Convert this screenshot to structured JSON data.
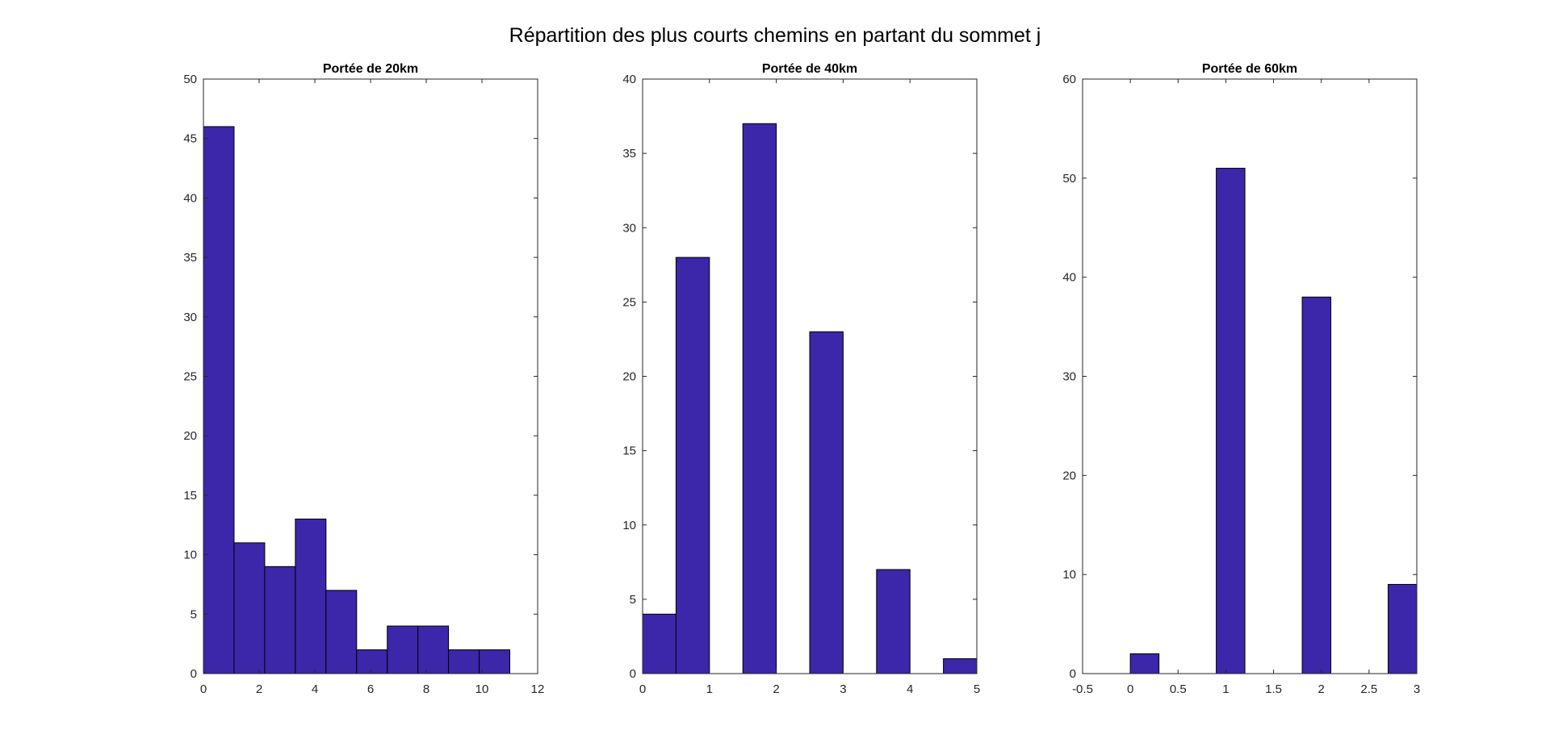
{
  "figure": {
    "title": "Répartition des plus courts chemins en partant du sommet j"
  },
  "colors": {
    "bar_fill": "#3c26a9",
    "bar_edge": "#000000",
    "axis": "#262626"
  },
  "chart_data": [
    {
      "type": "bar",
      "title": "Portée de 20km",
      "xlabel": "",
      "ylabel": "",
      "xlim": [
        0,
        12
      ],
      "ylim": [
        0,
        50
      ],
      "xticks": [
        0,
        2,
        4,
        6,
        8,
        10,
        12
      ],
      "xtick_labels": [
        "0",
        "2",
        "4",
        "6",
        "8",
        "10",
        "12"
      ],
      "yticks": [
        0,
        5,
        10,
        15,
        20,
        25,
        30,
        35,
        40,
        45,
        50
      ],
      "ytick_labels": [
        "0",
        "5",
        "10",
        "15",
        "20",
        "25",
        "30",
        "35",
        "40",
        "45",
        "50"
      ],
      "bins": [
        {
          "x0": 0,
          "x1": 1.1,
          "value": 46
        },
        {
          "x0": 1.1,
          "x1": 2.2,
          "value": 11
        },
        {
          "x0": 2.2,
          "x1": 3.3,
          "value": 9
        },
        {
          "x0": 3.3,
          "x1": 4.4,
          "value": 13
        },
        {
          "x0": 4.4,
          "x1": 5.5,
          "value": 7
        },
        {
          "x0": 5.5,
          "x1": 6.6,
          "value": 2
        },
        {
          "x0": 6.6,
          "x1": 7.7,
          "value": 4
        },
        {
          "x0": 7.7,
          "x1": 8.8,
          "value": 4
        },
        {
          "x0": 8.8,
          "x1": 9.9,
          "value": 2
        },
        {
          "x0": 9.9,
          "x1": 11,
          "value": 2
        }
      ]
    },
    {
      "type": "bar",
      "title": "Portée de 40km",
      "xlabel": "",
      "ylabel": "",
      "xlim": [
        0,
        5
      ],
      "ylim": [
        0,
        40
      ],
      "xticks": [
        0,
        1,
        2,
        3,
        4,
        5
      ],
      "xtick_labels": [
        "0",
        "1",
        "2",
        "3",
        "4",
        "5"
      ],
      "yticks": [
        0,
        5,
        10,
        15,
        20,
        25,
        30,
        35,
        40
      ],
      "ytick_labels": [
        "0",
        "5",
        "10",
        "15",
        "20",
        "25",
        "30",
        "35",
        "40"
      ],
      "bins": [
        {
          "x0": 0,
          "x1": 0.5,
          "value": 4
        },
        {
          "x0": 0.5,
          "x1": 1.0,
          "value": 28
        },
        {
          "x0": 1.5,
          "x1": 2.0,
          "value": 37
        },
        {
          "x0": 2.5,
          "x1": 3.0,
          "value": 23
        },
        {
          "x0": 3.5,
          "x1": 4.0,
          "value": 7
        },
        {
          "x0": 4.5,
          "x1": 5.0,
          "value": 1
        }
      ]
    },
    {
      "type": "bar",
      "title": "Portée de 60km",
      "xlabel": "",
      "ylabel": "",
      "xlim": [
        -0.5,
        3
      ],
      "ylim": [
        0,
        60
      ],
      "xticks": [
        -0.5,
        0,
        0.5,
        1,
        1.5,
        2,
        2.5,
        3
      ],
      "xtick_labels": [
        "-0.5",
        "0",
        "0.5",
        "1",
        "1.5",
        "2",
        "2.5",
        "3"
      ],
      "yticks": [
        0,
        10,
        20,
        30,
        40,
        50,
        60
      ],
      "ytick_labels": [
        "0",
        "10",
        "20",
        "30",
        "40",
        "50",
        "60"
      ],
      "bins": [
        {
          "x0": 0,
          "x1": 0.3,
          "value": 2
        },
        {
          "x0": 0.9,
          "x1": 1.2,
          "value": 51
        },
        {
          "x0": 1.8,
          "x1": 2.1,
          "value": 38
        },
        {
          "x0": 2.7,
          "x1": 3.0,
          "value": 9
        }
      ]
    }
  ]
}
